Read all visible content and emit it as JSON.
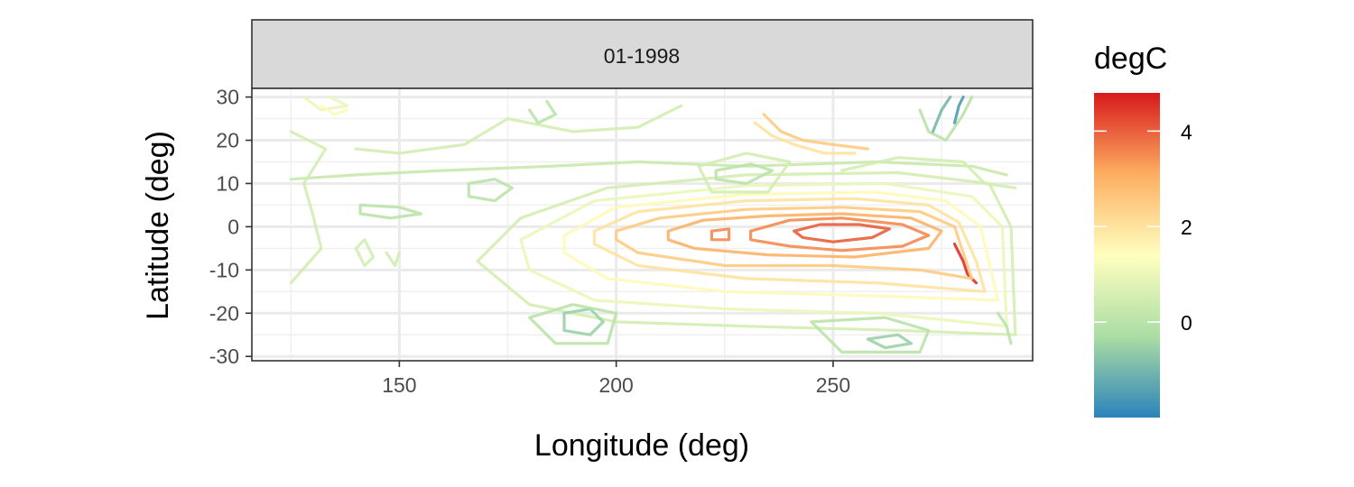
{
  "chart_data": {
    "type": "contour",
    "panel_title": "01-1998",
    "xlabel": "Longitude (deg)",
    "ylabel": "Latitude (deg)",
    "xlim": [
      116,
      296
    ],
    "ylim": [
      -31,
      32
    ],
    "x_ticks": [
      150,
      200,
      250
    ],
    "y_ticks": [
      30,
      20,
      10,
      0,
      -10,
      -20,
      -30
    ],
    "x_minor": [
      125,
      175,
      225,
      275
    ],
    "y_minor": [
      25,
      15,
      5,
      -5,
      -15,
      -25
    ],
    "x_tick_labels": [
      "150",
      "200",
      "250"
    ],
    "y_tick_labels": [
      "30",
      "20",
      "10",
      "0",
      "-10",
      "-20",
      "-30"
    ],
    "grid": true,
    "legend": {
      "title": "degC",
      "position": "right",
      "range": [
        -2,
        4.8
      ],
      "ticks": [
        0,
        2,
        4
      ],
      "tick_labels": [
        "0",
        "2",
        "4"
      ],
      "colors": [
        "#2b83ba",
        "#abdda4",
        "#ffffbf",
        "#fdae61",
        "#d7191c"
      ]
    },
    "contours": [
      {
        "level": 4.0,
        "points": [
          [
            241,
            -1
          ],
          [
            247,
            0.5
          ],
          [
            256,
            0.5
          ],
          [
            263,
            -0.5
          ],
          [
            259,
            -2.5
          ],
          [
            250,
            -3.5
          ],
          [
            243,
            -2.5
          ],
          [
            241,
            -1
          ]
        ]
      },
      {
        "level": 3.5,
        "points": [
          [
            222,
            -1
          ],
          [
            226,
            -0.5
          ],
          [
            226,
            -3
          ],
          [
            222,
            -3
          ],
          [
            222,
            -1
          ]
        ]
      },
      {
        "level": 3.5,
        "points": [
          [
            231,
            -1
          ],
          [
            240,
            1.5
          ],
          [
            252,
            2
          ],
          [
            266,
            0.5
          ],
          [
            272,
            -2
          ],
          [
            266,
            -4.5
          ],
          [
            252,
            -5.5
          ],
          [
            240,
            -4.5
          ],
          [
            231,
            -3
          ],
          [
            231,
            -1
          ]
        ]
      },
      {
        "level": 3.0,
        "points": [
          [
            212,
            -1
          ],
          [
            220,
            1.5
          ],
          [
            235,
            2.5
          ],
          [
            252,
            3
          ],
          [
            268,
            2
          ],
          [
            275,
            -1
          ],
          [
            272,
            -5
          ],
          [
            255,
            -7
          ],
          [
            235,
            -6.5
          ],
          [
            218,
            -5
          ],
          [
            212,
            -3
          ],
          [
            212,
            -1
          ]
        ]
      },
      {
        "level": 4.5,
        "points": [
          [
            278,
            -4
          ],
          [
            280,
            -8
          ],
          [
            281,
            -11
          ],
          [
            283,
            -13
          ]
        ]
      },
      {
        "level": 2.5,
        "points": [
          [
            200,
            -1
          ],
          [
            210,
            2
          ],
          [
            230,
            4
          ],
          [
            252,
            4.5
          ],
          [
            270,
            3.5
          ],
          [
            278,
            0
          ],
          [
            280,
            -6
          ],
          [
            282,
            -12
          ],
          [
            270,
            -10
          ],
          [
            250,
            -9
          ],
          [
            225,
            -9
          ],
          [
            205,
            -6
          ],
          [
            200,
            -3
          ],
          [
            200,
            -1
          ]
        ]
      },
      {
        "level": 2.0,
        "points": [
          [
            195,
            -1
          ],
          [
            205,
            3.5
          ],
          [
            230,
            6
          ],
          [
            255,
            6.5
          ],
          [
            272,
            5
          ],
          [
            279,
            1
          ],
          [
            283,
            -8
          ],
          [
            285,
            -15
          ],
          [
            260,
            -13
          ],
          [
            230,
            -12
          ],
          [
            205,
            -9
          ],
          [
            195,
            -4
          ],
          [
            195,
            -1
          ]
        ]
      },
      {
        "level": 1.5,
        "points": [
          [
            188,
            -2
          ],
          [
            200,
            4.5
          ],
          [
            230,
            7.5
          ],
          [
            260,
            8
          ],
          [
            276,
            6
          ],
          [
            284,
            0
          ],
          [
            288,
            -17
          ],
          [
            260,
            -16
          ],
          [
            225,
            -15
          ],
          [
            198,
            -12
          ],
          [
            188,
            -6
          ],
          [
            188,
            -2
          ]
        ]
      },
      {
        "level": 1.0,
        "points": [
          [
            178,
            -3
          ],
          [
            195,
            6
          ],
          [
            230,
            9.5
          ],
          [
            262,
            10
          ],
          [
            282,
            7
          ],
          [
            289,
            0
          ],
          [
            290,
            -23
          ],
          [
            260,
            -20
          ],
          [
            225,
            -19
          ],
          [
            195,
            -17
          ],
          [
            180,
            -10
          ],
          [
            178,
            -3
          ]
        ]
      },
      {
        "level": 0.5,
        "points": [
          [
            168,
            -8
          ],
          [
            178,
            2
          ],
          [
            198,
            9
          ],
          [
            230,
            12
          ],
          [
            265,
            12.5
          ],
          [
            286,
            10
          ],
          [
            291,
            0
          ],
          [
            292,
            -25
          ],
          [
            265,
            -24
          ],
          [
            230,
            -23
          ],
          [
            200,
            -22
          ],
          [
            180,
            -18
          ],
          [
            168,
            -8
          ]
        ]
      },
      {
        "level": 0.3,
        "points": [
          [
            125,
            11
          ],
          [
            140,
            12
          ],
          [
            160,
            13
          ],
          [
            185,
            14
          ],
          [
            205,
            15
          ],
          [
            230,
            14
          ],
          [
            260,
            15
          ],
          [
            282,
            14
          ],
          [
            290,
            12
          ]
        ]
      },
      {
        "level": 0.0,
        "points": [
          [
            141,
            5
          ],
          [
            150,
            4.5
          ],
          [
            155,
            3
          ],
          [
            148,
            2
          ],
          [
            141,
            3
          ],
          [
            141,
            5
          ]
        ]
      },
      {
        "level": 0.0,
        "points": [
          [
            166,
            10
          ],
          [
            172,
            11
          ],
          [
            176,
            9
          ],
          [
            172,
            6
          ],
          [
            166,
            7
          ],
          [
            166,
            10
          ]
        ]
      },
      {
        "level": 0.0,
        "points": [
          [
            223,
            13
          ],
          [
            231,
            14.5
          ],
          [
            236,
            13
          ],
          [
            230,
            10
          ],
          [
            223,
            11
          ],
          [
            223,
            13
          ]
        ]
      },
      {
        "level": 0.5,
        "points": [
          [
            219,
            14
          ],
          [
            230,
            17
          ],
          [
            240,
            15
          ],
          [
            235,
            8
          ],
          [
            222,
            8
          ],
          [
            219,
            14
          ]
        ]
      },
      {
        "level": -0.5,
        "points": [
          [
            188,
            -20
          ],
          [
            194,
            -19
          ],
          [
            197,
            -22
          ],
          [
            194,
            -25
          ],
          [
            188,
            -24
          ],
          [
            188,
            -20
          ]
        ]
      },
      {
        "level": 0.0,
        "points": [
          [
            180,
            -21
          ],
          [
            190,
            -18
          ],
          [
            200,
            -20
          ],
          [
            198,
            -27
          ],
          [
            186,
            -27
          ],
          [
            180,
            -21
          ]
        ]
      },
      {
        "level": -0.5,
        "points": [
          [
            258,
            -26
          ],
          [
            265,
            -25
          ],
          [
            268,
            -27
          ],
          [
            262,
            -28
          ],
          [
            258,
            -26
          ]
        ]
      },
      {
        "level": 0.0,
        "points": [
          [
            245,
            -22
          ],
          [
            262,
            -21
          ],
          [
            272,
            -24
          ],
          [
            270,
            -29
          ],
          [
            252,
            -29
          ],
          [
            245,
            -22
          ]
        ]
      },
      {
        "level": 0.5,
        "points": [
          [
            125,
            -13
          ],
          [
            132,
            -5
          ],
          [
            130,
            3
          ],
          [
            128,
            10
          ],
          [
            133,
            18
          ],
          [
            125,
            22
          ]
        ]
      },
      {
        "level": 0.5,
        "points": [
          [
            140,
            18
          ],
          [
            150,
            17
          ],
          [
            165,
            19
          ],
          [
            175,
            25
          ],
          [
            190,
            22
          ],
          [
            205,
            23
          ],
          [
            215,
            28
          ]
        ]
      },
      {
        "level": 0.0,
        "points": [
          [
            180,
            27
          ],
          [
            182,
            24
          ],
          [
            186,
            26
          ],
          [
            184,
            29
          ]
        ]
      },
      {
        "level": 0.0,
        "points": [
          [
            270,
            27
          ],
          [
            272,
            22
          ],
          [
            276,
            20
          ],
          [
            280,
            26
          ],
          [
            282,
            30
          ]
        ]
      },
      {
        "level": -1.0,
        "points": [
          [
            273,
            22
          ],
          [
            275,
            27
          ],
          [
            277,
            30
          ]
        ]
      },
      {
        "level": -1.5,
        "points": [
          [
            278,
            24
          ],
          [
            279,
            28
          ],
          [
            280,
            30
          ]
        ]
      },
      {
        "level": 2.0,
        "points": [
          [
            232,
            24
          ],
          [
            236,
            21
          ],
          [
            241,
            19
          ],
          [
            248,
            17
          ],
          [
            255,
            17
          ]
        ]
      },
      {
        "level": 2.5,
        "points": [
          [
            234,
            26
          ],
          [
            238,
            22
          ],
          [
            243,
            20
          ],
          [
            250,
            19
          ],
          [
            258,
            18
          ]
        ]
      },
      {
        "level": 1.0,
        "points": [
          [
            128,
            30
          ],
          [
            132,
            27
          ],
          [
            138,
            28
          ],
          [
            134,
            30
          ]
        ]
      },
      {
        "level": 1.5,
        "points": [
          [
            132,
            28
          ],
          [
            135,
            26
          ],
          [
            138,
            27
          ]
        ]
      },
      {
        "level": 0.5,
        "points": [
          [
            140,
            -5
          ],
          [
            142,
            -9
          ],
          [
            144,
            -7
          ],
          [
            142,
            -3
          ],
          [
            140,
            -5
          ]
        ]
      },
      {
        "level": 0.5,
        "points": [
          [
            147,
            -6
          ],
          [
            149,
            -9
          ],
          [
            150,
            -6
          ]
        ]
      },
      {
        "level": 0.5,
        "points": [
          [
            252,
            13
          ],
          [
            265,
            16
          ],
          [
            280,
            15
          ],
          [
            285,
            10
          ],
          [
            292,
            9
          ]
        ]
      },
      {
        "level": 0.0,
        "points": [
          [
            288,
            -20
          ],
          [
            290,
            -23
          ],
          [
            291,
            -27
          ]
        ]
      }
    ]
  }
}
